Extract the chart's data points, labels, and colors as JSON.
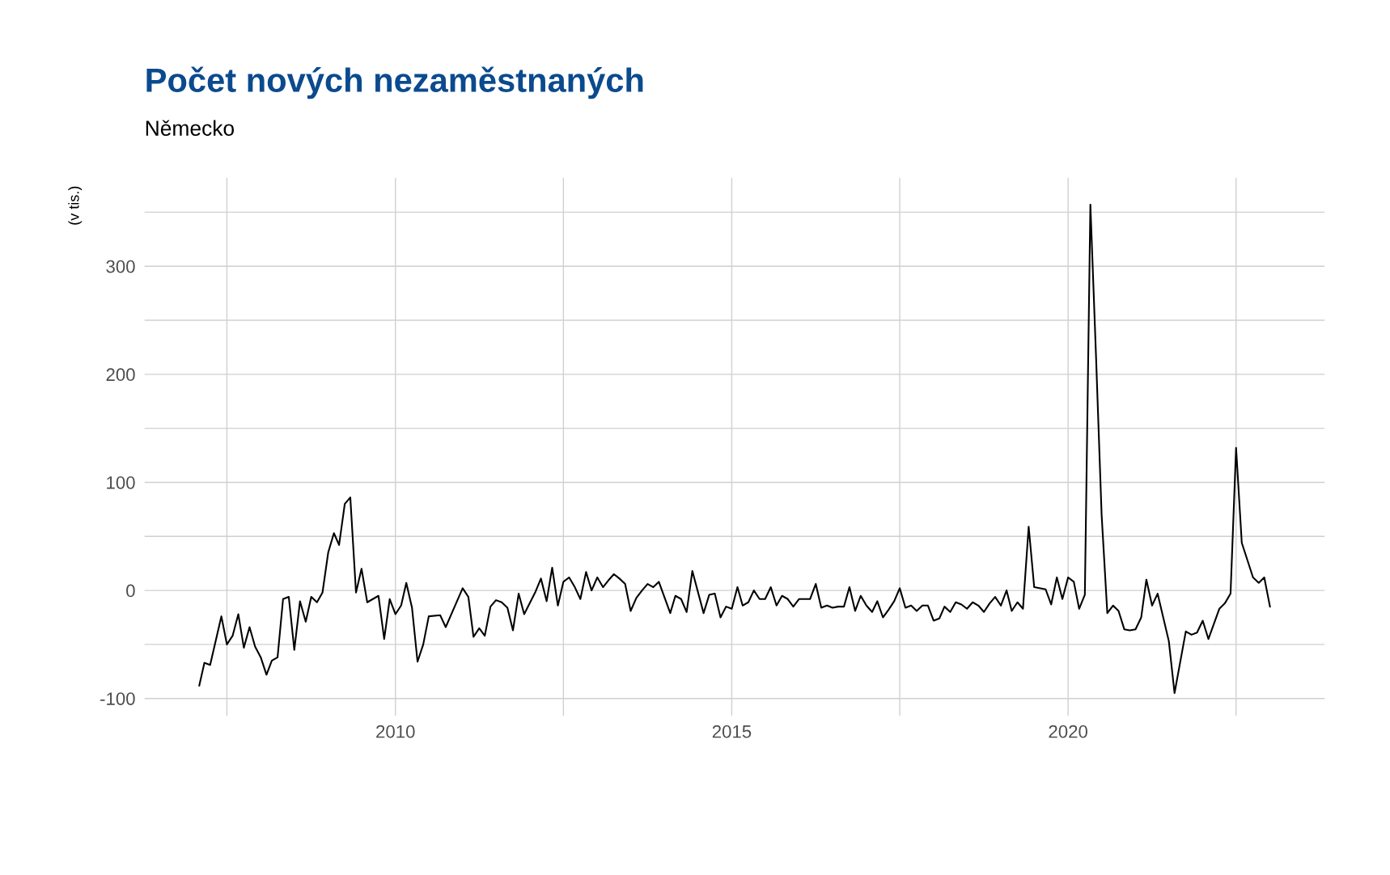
{
  "chart_data": {
    "type": "line",
    "title": "Počet nových nezaměstnaných",
    "subtitle": "Německo",
    "ylabel": "(v tis.)",
    "x": [
      "2007-02",
      "2007-03",
      "2007-04",
      "2007-06",
      "2007-07",
      "2007-08",
      "2007-09",
      "2007-10",
      "2007-11",
      "2007-12",
      "2008-01",
      "2008-02",
      "2008-03",
      "2008-04",
      "2008-05",
      "2008-06",
      "2008-07",
      "2008-08",
      "2008-09",
      "2008-10",
      "2008-11",
      "2008-12",
      "2009-01",
      "2009-02",
      "2009-03",
      "2009-04",
      "2009-05",
      "2009-06",
      "2009-07",
      "2009-08",
      "2009-10",
      "2009-11",
      "2009-12",
      "2010-01",
      "2010-02",
      "2010-03",
      "2010-04",
      "2010-05",
      "2010-06",
      "2010-07",
      "2010-09",
      "2010-10",
      "2011-01",
      "2011-02",
      "2011-03",
      "2011-04",
      "2011-05",
      "2011-06",
      "2011-07",
      "2011-08",
      "2011-09",
      "2011-10",
      "2011-11",
      "2011-12",
      "2012-02",
      "2012-03",
      "2012-04",
      "2012-05",
      "2012-06",
      "2012-07",
      "2012-08",
      "2012-09",
      "2012-10",
      "2012-11",
      "2012-12",
      "2013-01",
      "2013-02",
      "2013-03",
      "2013-04",
      "2013-05",
      "2013-06",
      "2013-07",
      "2013-08",
      "2013-09",
      "2013-10",
      "2013-11",
      "2013-12",
      "2014-02",
      "2014-03",
      "2014-04",
      "2014-05",
      "2014-06",
      "2014-08",
      "2014-09",
      "2014-10",
      "2014-11",
      "2014-12",
      "2015-01",
      "2015-02",
      "2015-03",
      "2015-04",
      "2015-05",
      "2015-06",
      "2015-07",
      "2015-08",
      "2015-09",
      "2015-10",
      "2015-11",
      "2015-12",
      "2016-01",
      "2016-03",
      "2016-04",
      "2016-05",
      "2016-06",
      "2016-07",
      "2016-08",
      "2016-09",
      "2016-10",
      "2016-11",
      "2016-12",
      "2017-01",
      "2017-02",
      "2017-03",
      "2017-04",
      "2017-05",
      "2017-06",
      "2017-07",
      "2017-08",
      "2017-09",
      "2017-10",
      "2017-11",
      "2017-12",
      "2018-01",
      "2018-02",
      "2018-03",
      "2018-04",
      "2018-05",
      "2018-06",
      "2018-07",
      "2018-08",
      "2018-09",
      "2018-10",
      "2018-11",
      "2018-12",
      "2019-01",
      "2019-02",
      "2019-03",
      "2019-04",
      "2019-05",
      "2019-06",
      "2019-07",
      "2019-09",
      "2019-10",
      "2019-11",
      "2019-12",
      "2020-01",
      "2020-02",
      "2020-03",
      "2020-04",
      "2020-05",
      "2020-06",
      "2020-07",
      "2020-08",
      "2020-09",
      "2020-10",
      "2020-11",
      "2020-12",
      "2021-01",
      "2021-02",
      "2021-03",
      "2021-04",
      "2021-05",
      "2021-07",
      "2021-08",
      "2021-10",
      "2021-11",
      "2021-12",
      "2022-01",
      "2022-02",
      "2022-04",
      "2022-05",
      "2022-06",
      "2022-07",
      "2022-08",
      "2022-10",
      "2022-11",
      "2022-12",
      "2023-01"
    ],
    "series": [
      {
        "color": "#000000",
        "values": [
          -88,
          -67,
          -69,
          -24,
          -50,
          -42,
          -22,
          -53,
          -34,
          -52,
          -62,
          -78,
          -65,
          -62,
          -8,
          -6,
          -55,
          -10,
          -29,
          -6,
          -11,
          -2,
          35,
          53,
          42,
          80,
          86,
          -2,
          20,
          -11,
          -5,
          -45,
          -8,
          -22,
          -14,
          7,
          -16,
          -66,
          -50,
          -24,
          -23,
          -34,
          2,
          -6,
          -43,
          -35,
          -42,
          -15,
          -9,
          -11,
          -16,
          -37,
          -3,
          -22,
          -1,
          11,
          -10,
          21,
          -14,
          8,
          12,
          3,
          -8,
          17,
          0,
          12,
          3,
          9,
          15,
          11,
          6,
          -19,
          -7,
          0,
          6,
          3,
          8,
          -21,
          -5,
          -8,
          -20,
          18,
          -21,
          -4,
          -3,
          -25,
          -15,
          -17,
          3,
          -14,
          -11,
          0,
          -8,
          -8,
          3,
          -14,
          -5,
          -8,
          -15,
          -8,
          -8,
          6,
          -16,
          -14,
          -16,
          -15,
          -15,
          3,
          -19,
          -5,
          -14,
          -20,
          -10,
          -25,
          -18,
          -10,
          2,
          -16,
          -14,
          -19,
          -14,
          -14,
          -28,
          -26,
          -15,
          -20,
          -11,
          -13,
          -17,
          -11,
          -14,
          -20,
          -12,
          -6,
          -14,
          0,
          -19,
          -11,
          -17,
          59,
          3,
          1,
          -13,
          12,
          -8,
          12,
          8,
          -17,
          -4,
          357,
          215,
          70,
          -21,
          -14,
          -19,
          -36,
          -37,
          -36,
          -25,
          10,
          -14,
          -3,
          -47,
          -95,
          -38,
          -41,
          -39,
          -28,
          -45,
          -17,
          -12,
          -3,
          132,
          44,
          12,
          7,
          12,
          -15
        ]
      }
    ],
    "xlim": [
      "2006-04-10",
      "2023-10-25"
    ],
    "xticks": [
      {
        "value": "2007-07",
        "label": null
      },
      {
        "value": "2010-01",
        "label": "2010"
      },
      {
        "value": "2012-07",
        "label": null
      },
      {
        "value": "2015-01",
        "label": "2015"
      },
      {
        "value": "2017-07",
        "label": null
      },
      {
        "value": "2020-01",
        "label": "2020"
      },
      {
        "value": "2022-07",
        "label": null
      }
    ],
    "ylim": [
      -116,
      382
    ],
    "yticks": [
      -100,
      {
        "value": -50,
        "label": null
      },
      0,
      {
        "value": 50,
        "label": null
      },
      100,
      {
        "value": 150,
        "label": null
      },
      200,
      {
        "value": 250,
        "label": null
      },
      300,
      {
        "value": 350,
        "label": null
      }
    ],
    "grid": true,
    "line_style": "solid",
    "marker": "none",
    "legend": false
  }
}
